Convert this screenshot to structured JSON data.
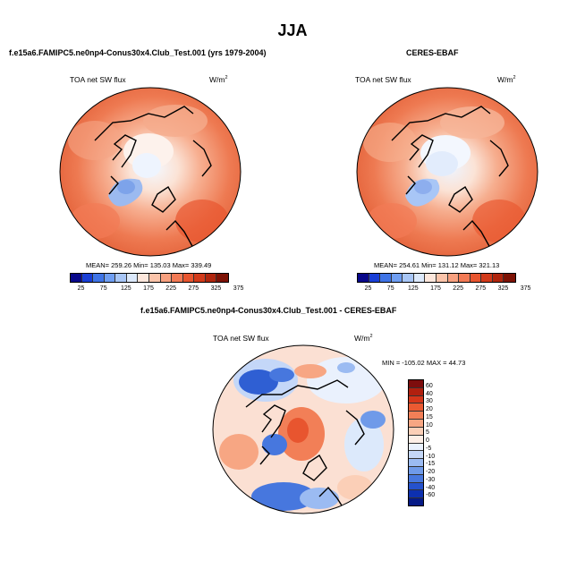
{
  "page": {
    "title": "JJA"
  },
  "panels": [
    {
      "id": "model",
      "title": "f.e15a6.FAMIPC5.ne0np4-Conus30x4.Club_Test.001 (yrs 1979-2004)",
      "variable": "TOA net SW flux",
      "units_base": "W/m",
      "units_exp": "2",
      "stats": "MEAN= 259.26   Min= 135.03   Max= 339.49"
    },
    {
      "id": "obs",
      "title": "CERES-EBAF",
      "variable": "TOA net SW flux",
      "units_base": "W/m",
      "units_exp": "2",
      "stats": "MEAN= 254.61   Min= 131.12   Max= 321.13"
    },
    {
      "id": "diff",
      "title": "f.e15a6.FAMIPC5.ne0np4-Conus30x4.Club_Test.001 - CERES-EBAF",
      "variable": "TOA net SW flux",
      "units_base": "W/m",
      "units_exp": "2",
      "stats": "MIN = -105.02  MAX =  44.73"
    }
  ],
  "colorbar_abs": {
    "colors": [
      "#08088a",
      "#1a3fd6",
      "#3f74e6",
      "#6f9ef2",
      "#a8c6f6",
      "#dce9fb",
      "#fde7dc",
      "#fbc4aa",
      "#f7a07f",
      "#f27a55",
      "#e8552f",
      "#d23a1a",
      "#b0250d",
      "#7d1205"
    ],
    "ticks": [
      "25",
      "75",
      "125",
      "175",
      "225",
      "275",
      "325",
      "375"
    ]
  },
  "colorbar_diff": {
    "colors": [
      "#7d0d0d",
      "#b1200f",
      "#d5361a",
      "#ea5a32",
      "#f27f57",
      "#f7a683",
      "#fbcfb7",
      "#fdeee6",
      "#eaf1fd",
      "#c4d7f8",
      "#9bbbf2",
      "#6f9ae9",
      "#4777de",
      "#2552cd",
      "#0d30b0",
      "#061a86"
    ],
    "ticks": [
      "60",
      "40",
      "30",
      "20",
      "15",
      "10",
      "5",
      "0",
      "-5",
      "-10",
      "-15",
      "-20",
      "-30",
      "-40",
      "-60"
    ]
  }
}
